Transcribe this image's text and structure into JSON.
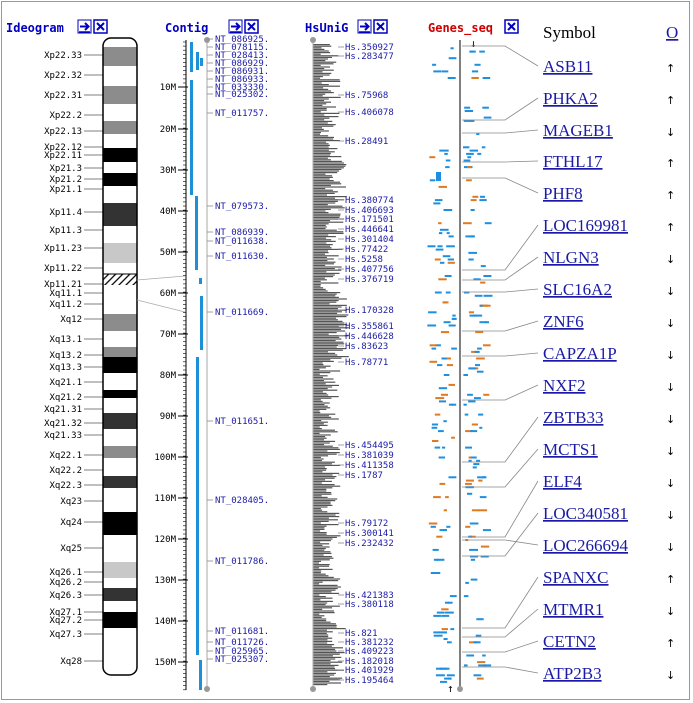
{
  "headers": {
    "ideogram": "Ideogram",
    "contig": "Contig",
    "hsunig": "HsUniG",
    "genes_seq": "Genes_seq",
    "symbol": "Symbol",
    "orientation": "O"
  },
  "colors": {
    "header_blue": "#0000c0",
    "header_red": "#d00000",
    "contig_bar": "#1e90d8",
    "link_blue": "#1a1aa6",
    "hsunig_fill": "#555555",
    "gene_blue": "#1e8fe0",
    "gene_orange": "#e07a20"
  },
  "ideogram_bands": [
    {
      "label": "Xp22.33",
      "stain": "white"
    },
    {
      "label": "Xp22.32",
      "stain": "gray"
    },
    {
      "label": "Xp22.31",
      "stain": "white"
    },
    {
      "label": "Xp22.2",
      "stain": "gray"
    },
    {
      "label": "Xp22.13",
      "stain": "white"
    },
    {
      "label": "Xp22.12",
      "stain": "gray"
    },
    {
      "label": "Xp22.11",
      "stain": "white"
    },
    {
      "label": "Xp21.3",
      "stain": "black"
    },
    {
      "label": "Xp21.2",
      "stain": "white"
    },
    {
      "label": "Xp21.1",
      "stain": "black"
    },
    {
      "label": "Xp11.4",
      "stain": "white"
    },
    {
      "label": "Xp11.3",
      "stain": "dark"
    },
    {
      "label": "Xp11.23",
      "stain": "white"
    },
    {
      "label": "Xp11.22",
      "stain": "light"
    },
    {
      "label": "Xp11.21",
      "stain": "white"
    },
    {
      "label": "Xq11.1",
      "stain": "hatch"
    },
    {
      "label": "Xq11.2",
      "stain": "white"
    },
    {
      "label": "Xq12",
      "stain": "white"
    },
    {
      "label": "Xq13.1",
      "stain": "gray"
    },
    {
      "label": "Xq13.2",
      "stain": "white"
    },
    {
      "label": "Xq13.3",
      "stain": "gray"
    },
    {
      "label": "Xq21.1",
      "stain": "black"
    },
    {
      "label": "Xq21.2",
      "stain": "white"
    },
    {
      "label": "Xq21.31",
      "stain": "black"
    },
    {
      "label": "Xq21.32",
      "stain": "white"
    },
    {
      "label": "Xq21.33",
      "stain": "dark"
    },
    {
      "label": "Xq22.1",
      "stain": "white"
    },
    {
      "label": "Xq22.2",
      "stain": "gray"
    },
    {
      "label": "Xq22.3",
      "stain": "white"
    },
    {
      "label": "Xq23",
      "stain": "dark"
    },
    {
      "label": "Xq24",
      "stain": "white"
    },
    {
      "label": "Xq25",
      "stain": "black"
    },
    {
      "label": "Xq26.1",
      "stain": "white"
    },
    {
      "label": "Xq26.2",
      "stain": "light"
    },
    {
      "label": "Xq26.3",
      "stain": "white"
    },
    {
      "label": "Xq27.1",
      "stain": "dark"
    },
    {
      "label": "Xq27.2",
      "stain": "white"
    },
    {
      "label": "Xq27.3",
      "stain": "black"
    },
    {
      "label": "Xq28",
      "stain": "white"
    }
  ],
  "scale_ticks": [
    "10M",
    "20M",
    "30M",
    "40M",
    "50M",
    "60M",
    "70M",
    "80M",
    "90M",
    "100M",
    "110M",
    "120M",
    "130M",
    "140M",
    "150M"
  ],
  "contigs": [
    "NT_086925.",
    "NT_078115.",
    "NT_028413.",
    "NT_086929.",
    "NT_086931.",
    "NT_086933.",
    "NT_033330.",
    "NT_025302.",
    "NT_011757.",
    "NT_079573.",
    "NT_086939.",
    "NT_011638.",
    "NT_011630.",
    "NT_011669.",
    "NT_011651.",
    "NT_028405.",
    "NT_011786.",
    "NT_011681.",
    "NT_011726.",
    "NT_025965.",
    "NT_025307."
  ],
  "hsunig": [
    "Hs.350927",
    "Hs.283477",
    "Hs.75968",
    "Hs.406078",
    "Hs.28491",
    "Hs.380774",
    "Hs.406693",
    "Hs.171501",
    "Hs.446641",
    "Hs.301404",
    "Hs.77422",
    "Hs.5258",
    "Hs.407756",
    "Hs.376719",
    "Hs.170328",
    "Hs.355861",
    "Hs.446628",
    "Hs.83623",
    "Hs.78771",
    "Hs.454495",
    "Hs.381039",
    "Hs.411358",
    "Hs.1787",
    "Hs.79172",
    "Hs.300141",
    "Hs.232432",
    "Hs.421383",
    "Hs.380118",
    "Hs.821",
    "Hs.381232",
    "Hs.409223",
    "Hs.182018",
    "Hs.401929",
    "Hs.195464"
  ],
  "genes": [
    {
      "symbol": "ASB11",
      "strand": "↑"
    },
    {
      "symbol": "PHKA2",
      "strand": "↑"
    },
    {
      "symbol": "MAGEB1",
      "strand": "↓"
    },
    {
      "symbol": "FTHL17",
      "strand": "↑"
    },
    {
      "symbol": "PHF8",
      "strand": "↑"
    },
    {
      "symbol": "LOC169981",
      "strand": "↑"
    },
    {
      "symbol": "NLGN3",
      "strand": "↓"
    },
    {
      "symbol": "SLC16A2",
      "strand": "↓"
    },
    {
      "symbol": "ZNF6",
      "strand": "↓"
    },
    {
      "symbol": "CAPZA1P",
      "strand": "↓"
    },
    {
      "symbol": "NXF2",
      "strand": "↓"
    },
    {
      "symbol": "ZBTB33",
      "strand": "↓"
    },
    {
      "symbol": "MCTS1",
      "strand": "↓"
    },
    {
      "symbol": "ELF4",
      "strand": "↓"
    },
    {
      "symbol": "LOC340581",
      "strand": "↓"
    },
    {
      "symbol": "LOC266694",
      "strand": "↓"
    },
    {
      "symbol": "SPANXC",
      "strand": "↑"
    },
    {
      "symbol": "MTMR1",
      "strand": "↓"
    },
    {
      "symbol": "CETN2",
      "strand": "↑"
    },
    {
      "symbol": "ATP2B3",
      "strand": "↓"
    }
  ]
}
